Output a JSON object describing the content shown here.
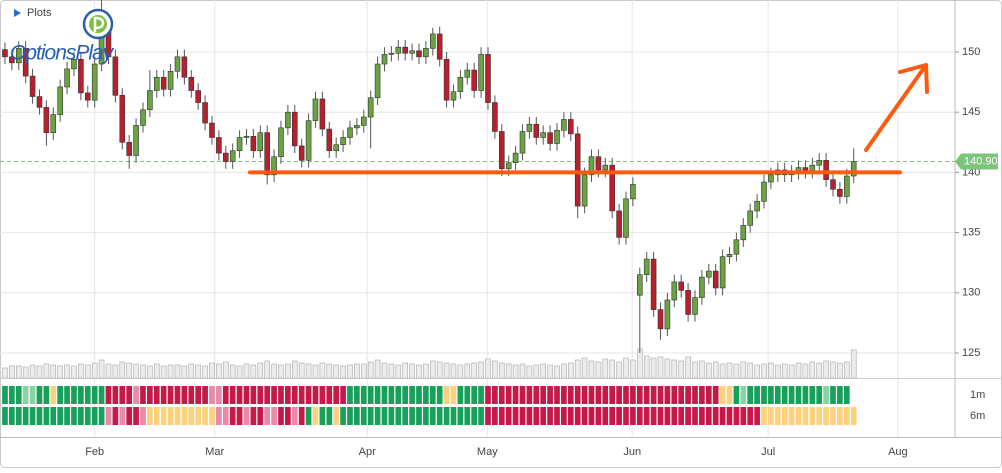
{
  "chart_data": {
    "type": "candlestick",
    "panel_label": "Plots",
    "logo": "OptionsPlay",
    "open": [
      150.2,
      149.6,
      149.1,
      150.3,
      148.0,
      146.3,
      145.4,
      143.3,
      144.8,
      147.1,
      148.6,
      149.4,
      146.6,
      146.0,
      149.0,
      152.0,
      149.6,
      146.4,
      142.5,
      141.4,
      143.9,
      145.2,
      146.8,
      147.9,
      146.9,
      148.4,
      149.6,
      147.9,
      146.8,
      145.8,
      144.1,
      142.9,
      141.6,
      140.9,
      141.8,
      142.9,
      143.0,
      141.8,
      143.3,
      139.8,
      141.3,
      143.7,
      145.0,
      142.2,
      141.0,
      144.3,
      146.1,
      143.6,
      141.8,
      142.3,
      142.9,
      143.7,
      143.9,
      144.6,
      146.2,
      149.0,
      149.8,
      149.9,
      150.4,
      149.9,
      150.1,
      149.6,
      150.3,
      151.5,
      149.4,
      146.0,
      146.7,
      147.9,
      148.5,
      146.8,
      149.8,
      145.8,
      143.4,
      140.3,
      140.8,
      141.6,
      143.4,
      144.0,
      142.9,
      143.3,
      142.4,
      143.5,
      144.4,
      143.2,
      137.2,
      139.8,
      141.3,
      140.2,
      140.6,
      136.8,
      134.6,
      137.8,
      129.8,
      131.5,
      132.8,
      128.6,
      127.0,
      129.4,
      130.9,
      130.2,
      128.2,
      129.6,
      131.3,
      131.8,
      130.4,
      133.0,
      133.2,
      134.4,
      135.6,
      136.8,
      137.6,
      139.2,
      139.8,
      140.2,
      139.8,
      140.0,
      140.4,
      140.1,
      140.6,
      141.0,
      139.4,
      138.6,
      138.0,
      139.7
    ],
    "high": [
      150.8,
      150.2,
      150.9,
      150.9,
      148.6,
      146.9,
      146.0,
      145.4,
      147.7,
      149.2,
      150.0,
      150.0,
      147.2,
      149.6,
      155.0,
      152.6,
      150.2,
      147.0,
      143.1,
      144.5,
      145.8,
      148.5,
      148.5,
      148.5,
      149.0,
      150.2,
      150.2,
      148.5,
      147.4,
      146.4,
      144.7,
      143.5,
      142.2,
      142.4,
      143.5,
      143.6,
      143.6,
      143.9,
      143.9,
      141.9,
      144.3,
      145.6,
      145.6,
      142.8,
      144.9,
      146.7,
      146.7,
      144.2,
      142.9,
      143.5,
      144.3,
      144.5,
      145.2,
      146.8,
      149.6,
      150.4,
      150.5,
      151.0,
      151.0,
      150.7,
      150.7,
      150.9,
      152.0,
      152.1,
      150.0,
      147.3,
      148.5,
      149.1,
      149.1,
      150.4,
      150.4,
      146.4,
      144.0,
      141.4,
      142.2,
      144.0,
      144.6,
      144.6,
      143.9,
      143.9,
      144.1,
      145.0,
      145.0,
      143.8,
      140.4,
      141.9,
      141.9,
      141.2,
      141.2,
      137.4,
      138.4,
      139.6,
      132.1,
      133.4,
      133.4,
      129.2,
      130.0,
      131.5,
      131.5,
      130.8,
      130.2,
      131.9,
      132.4,
      132.4,
      133.6,
      133.8,
      135.0,
      136.2,
      137.4,
      138.2,
      139.8,
      140.4,
      140.8,
      140.8,
      140.6,
      141.0,
      141.0,
      141.2,
      141.6,
      141.6,
      140.0,
      139.2,
      140.3,
      142.0
    ],
    "low": [
      149.0,
      148.5,
      148.5,
      147.4,
      145.7,
      144.8,
      142.2,
      142.7,
      144.2,
      146.5,
      148.0,
      146.0,
      145.4,
      145.4,
      148.4,
      149.0,
      145.8,
      141.9,
      140.3,
      140.8,
      143.3,
      144.6,
      146.2,
      146.3,
      146.3,
      147.8,
      147.3,
      146.2,
      145.2,
      143.5,
      142.3,
      141.0,
      140.3,
      140.3,
      141.2,
      142.3,
      141.2,
      141.2,
      139.0,
      139.2,
      140.7,
      143.1,
      141.6,
      140.4,
      140.4,
      143.7,
      143.0,
      141.2,
      141.2,
      141.7,
      142.3,
      143.1,
      143.3,
      142.0,
      145.6,
      148.4,
      149.2,
      149.3,
      149.3,
      149.3,
      149.0,
      149.0,
      149.7,
      148.8,
      145.4,
      145.4,
      146.1,
      147.3,
      146.2,
      146.2,
      145.2,
      142.8,
      139.7,
      139.7,
      140.2,
      141.0,
      142.8,
      142.3,
      142.3,
      141.8,
      141.8,
      142.9,
      142.6,
      136.2,
      136.6,
      139.2,
      139.6,
      139.6,
      136.2,
      134.0,
      134.0,
      137.2,
      125.0,
      130.9,
      128.0,
      126.1,
      126.4,
      128.8,
      129.6,
      127.6,
      127.6,
      129.0,
      130.7,
      129.8,
      129.8,
      132.4,
      132.6,
      133.8,
      135.0,
      136.2,
      137.0,
      138.6,
      139.2,
      139.2,
      139.2,
      139.4,
      139.5,
      139.5,
      140.0,
      138.8,
      138.0,
      137.4,
      137.4,
      139.1
    ],
    "close": [
      149.6,
      149.1,
      150.3,
      148.0,
      146.3,
      145.4,
      143.3,
      144.8,
      147.1,
      148.6,
      149.4,
      146.6,
      146.0,
      149.0,
      152.0,
      149.6,
      146.4,
      142.5,
      141.4,
      143.9,
      145.2,
      146.8,
      147.9,
      146.9,
      148.4,
      149.6,
      147.9,
      146.8,
      145.8,
      144.1,
      142.9,
      141.6,
      140.9,
      141.8,
      142.9,
      143.0,
      141.8,
      143.3,
      139.8,
      141.3,
      143.7,
      145.0,
      142.2,
      141.0,
      144.3,
      146.1,
      143.6,
      141.8,
      142.3,
      142.9,
      143.7,
      143.9,
      144.6,
      146.2,
      149.0,
      149.8,
      149.9,
      150.4,
      149.9,
      150.1,
      149.6,
      150.3,
      151.5,
      149.4,
      146.0,
      146.7,
      147.9,
      148.5,
      146.8,
      149.8,
      145.8,
      143.4,
      140.3,
      140.8,
      141.6,
      143.4,
      144.0,
      142.9,
      143.3,
      142.4,
      143.5,
      144.4,
      143.2,
      137.2,
      139.8,
      141.3,
      140.2,
      140.6,
      136.8,
      134.6,
      137.8,
      139.0,
      131.5,
      132.8,
      128.6,
      127.0,
      129.4,
      130.9,
      130.2,
      128.2,
      129.6,
      131.3,
      131.8,
      130.4,
      133.0,
      133.2,
      134.4,
      135.6,
      136.8,
      137.6,
      139.2,
      139.8,
      140.2,
      139.8,
      140.0,
      140.4,
      140.1,
      140.6,
      141.0,
      139.4,
      138.6,
      138.0,
      139.7,
      140.9
    ],
    "volume": [
      10,
      12,
      12,
      11,
      13,
      12,
      14,
      13,
      12,
      13,
      12,
      14,
      13,
      15,
      18,
      14,
      13,
      16,
      15,
      14,
      13,
      12,
      14,
      12,
      13,
      13,
      12,
      14,
      13,
      12,
      15,
      14,
      16,
      13,
      12,
      14,
      13,
      15,
      17,
      14,
      13,
      14,
      17,
      15,
      14,
      13,
      15,
      14,
      13,
      12,
      13,
      14,
      14,
      16,
      18,
      15,
      14,
      13,
      15,
      14,
      13,
      14,
      17,
      16,
      15,
      14,
      13,
      14,
      15,
      16,
      19,
      17,
      15,
      14,
      13,
      14,
      12,
      13,
      14,
      13,
      12,
      14,
      15,
      18,
      20,
      17,
      16,
      19,
      18,
      16,
      20,
      18,
      29,
      22,
      20,
      21,
      19,
      18,
      17,
      21,
      16,
      17,
      15,
      16,
      14,
      15,
      14,
      16,
      15,
      13,
      14,
      15,
      13,
      14,
      13,
      15,
      14,
      16,
      15,
      17,
      16,
      15,
      16,
      28
    ],
    "volume_lim": [
      0,
      40
    ],
    "up_color": "#6aa341",
    "down_color": "#b8202e",
    "xlim": [
      -0.72,
      137.68
    ],
    "xticks": [
      {
        "value": 13,
        "label": "Feb"
      },
      {
        "value": 30.4,
        "label": "Mar"
      },
      {
        "value": 52.5,
        "label": "Apr"
      },
      {
        "value": 69.9,
        "label": "May"
      },
      {
        "value": 90.9,
        "label": "Jun"
      },
      {
        "value": 110.6,
        "label": "Jul"
      },
      {
        "value": 129.4,
        "label": "Aug"
      }
    ],
    "ylim": [
      122.92,
      154.32
    ],
    "yticks": [
      125,
      130,
      135,
      140,
      145,
      150
    ],
    "grid": true,
    "last_price": {
      "value": 140.9,
      "label": "140.90",
      "color": "#7cc47c"
    },
    "support_line": {
      "value": 140,
      "from": 35.5,
      "to": 129.7,
      "color": "#ff5a10"
    },
    "strip_colors": {
      "G": "#16a05a",
      "g": "#86d3a5",
      "R": "#c8184a",
      "r": "#e88aa8",
      "Y": "#fcd27e"
    },
    "strips": [
      {
        "name": "1m",
        "cells": "GGGggGGYGGGGGGGRRRRrRRRRRRRRRRrrRRRRRRRRRRRRRRRRRRGGGGGGGGGGGGGGYYGGGGRRRRRRRRRRRRRRRRRRRRRRRRRRRRRRRRRRYYGgGGGGGGGGGGGgGGG"
      },
      {
        "name": "6m",
        "cells": "GGGGGGGGGGGGGGGrRrRRrYYYYYYYYYYrrRRrRRrrRRrRGYGGYGGGGGGGGGGGGGGGGGGGGGRRRRRRRRRRRRRRRRRRRRRRRRRRRRRRRRRRRRRRRRYYYYYYYYYYYYYY"
      }
    ]
  }
}
